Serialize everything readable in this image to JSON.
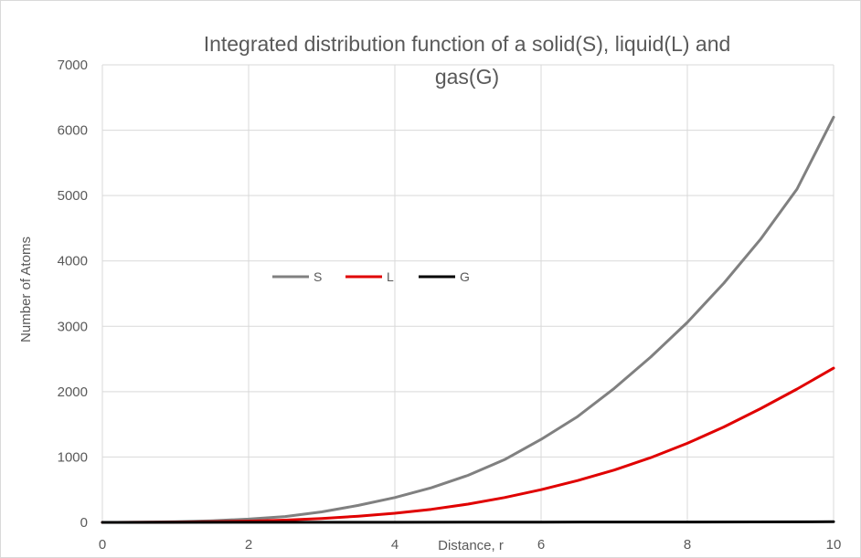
{
  "chart_data": {
    "type": "line",
    "title_line1": "Integrated distribution function of a solid(S), liquid(L) and",
    "title_line2": "gas(G)",
    "xlabel": "Distance, r",
    "ylabel": "Number of Atoms",
    "xlim": [
      0,
      10
    ],
    "ylim": [
      0,
      7000
    ],
    "x_ticks": [
      0,
      2,
      4,
      6,
      8,
      10
    ],
    "y_ticks": [
      0,
      1000,
      2000,
      3000,
      4000,
      5000,
      6000,
      7000
    ],
    "grid": true,
    "legend_placement": "middle-left inside plot",
    "series": [
      {
        "name": "S",
        "color": "#808080",
        "x": [
          0,
          0.5,
          1.0,
          1.5,
          2.0,
          2.5,
          3.0,
          3.5,
          4.0,
          4.5,
          5.0,
          5.5,
          6.0,
          6.5,
          7.0,
          7.5,
          8.0,
          8.5,
          9.0,
          9.5,
          10.0
        ],
        "y": [
          0,
          2,
          10,
          25,
          50,
          90,
          160,
          260,
          380,
          530,
          720,
          960,
          1270,
          1620,
          2050,
          2530,
          3060,
          3660,
          4330,
          5100,
          6200
        ]
      },
      {
        "name": "L",
        "color": "#e00000",
        "x": [
          0,
          0.5,
          1.0,
          1.5,
          2.0,
          2.5,
          3.0,
          3.5,
          4.0,
          4.5,
          5.0,
          5.5,
          6.0,
          6.5,
          7.0,
          7.5,
          8.0,
          8.5,
          9.0,
          9.5,
          10.0
        ],
        "y": [
          0,
          1,
          4,
          10,
          20,
          35,
          60,
          95,
          140,
          200,
          280,
          380,
          500,
          640,
          800,
          990,
          1210,
          1460,
          1740,
          2040,
          2360
        ]
      },
      {
        "name": "G",
        "color": "#000000",
        "x": [
          0,
          2,
          4,
          6,
          8,
          10
        ],
        "y": [
          0,
          1,
          2,
          4,
          6,
          10
        ]
      }
    ]
  }
}
